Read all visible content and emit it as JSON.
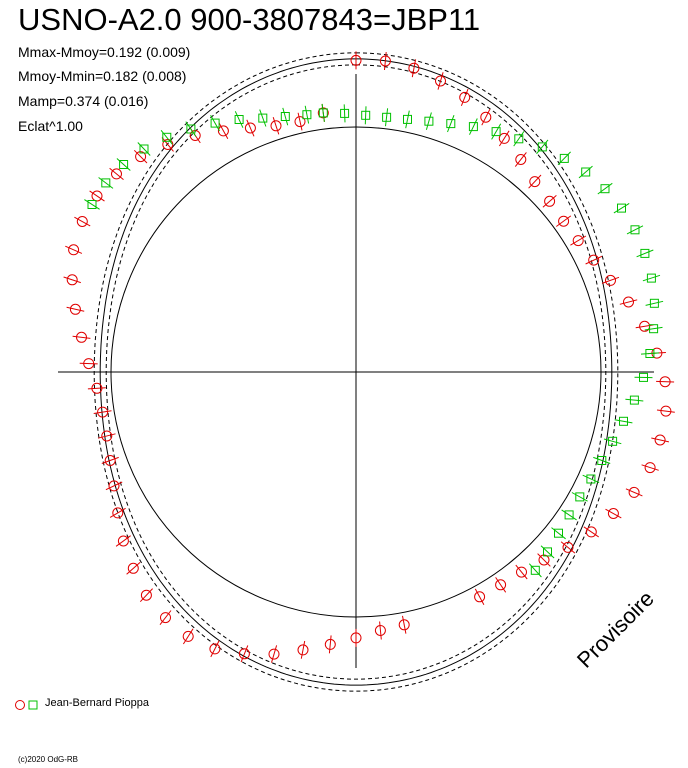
{
  "title": "USNO-A2.0 900-3807843=JBP11",
  "stats": [
    "Mmax-Mmoy=0.192 (0.009)",
    "Mmoy-Mmin=0.182 (0.008)",
    "Mamp=0.374 (0.016)",
    "Eclat^1.00"
  ],
  "legend": {
    "observer": "Jean-Bernard Pioppa"
  },
  "watermark": "Provisoire",
  "copyright": "(c)2020 OdG-RB",
  "colors": {
    "series_red": "#e00000",
    "series_green": "#00c000",
    "axes": "#000000",
    "curve": "#000000"
  },
  "chart_data": {
    "type": "scatter",
    "projection": "polar phase diagram",
    "title": "USNO-A2.0 900-3807843=JBP11",
    "grid": false,
    "legend_position": "bottom-left",
    "amplitude": 0.374,
    "max_minus_mean": 0.192,
    "mean_minus_min": 0.182,
    "series": [
      {
        "name": "Jean-Bernard Pioppa",
        "marker": "circle",
        "color": "#e00000",
        "phase": [
          0.0,
          0.015,
          0.03,
          0.045,
          0.06,
          0.075,
          0.09,
          0.105,
          0.12,
          0.135,
          0.15,
          0.165,
          0.18,
          0.195,
          0.21,
          0.225,
          0.24,
          0.255,
          0.27,
          0.285,
          0.3,
          0.315,
          0.33,
          0.345,
          0.36,
          0.375,
          0.39,
          0.405,
          0.42,
          0.47,
          0.485,
          0.5,
          0.515,
          0.53,
          0.545,
          0.56,
          0.575,
          0.59,
          0.605,
          0.62,
          0.635,
          0.65,
          0.665,
          0.68,
          0.695,
          0.71,
          0.725,
          0.74,
          0.755,
          0.77,
          0.785,
          0.8,
          0.815,
          0.83,
          0.845,
          0.86,
          0.875,
          0.89,
          0.905,
          0.92,
          0.935,
          0.95,
          0.965,
          0.98
        ],
        "delta_mag": [
          0.175,
          0.18,
          0.16,
          0.12,
          0.07,
          0.01,
          -0.05,
          -0.1,
          -0.15,
          -0.17,
          -0.18,
          -0.17,
          -0.14,
          -0.09,
          -0.02,
          0.05,
          0.11,
          0.16,
          0.18,
          0.175,
          0.16,
          0.12,
          0.06,
          0.0,
          -0.06,
          -0.12,
          -0.16,
          -0.175,
          -0.18,
          -0.175,
          -0.16,
          -0.12,
          -0.07,
          -0.01,
          0.06,
          0.12,
          0.17,
          0.185,
          0.17,
          0.14,
          0.08,
          0.02,
          -0.05,
          -0.11,
          -0.15,
          -0.175,
          -0.18,
          -0.16,
          -0.11,
          -0.05,
          0.02,
          0.09,
          0.15,
          0.18,
          0.185,
          0.17,
          0.13,
          0.07,
          0.01,
          -0.06,
          -0.12,
          -0.165,
          -0.18,
          -0.15
        ]
      },
      {
        "name": "Jean-Bernard Pioppa",
        "marker": "square",
        "color": "#00c000",
        "phase": [
          0.98,
          0.993,
          0.006,
          0.019,
          0.032,
          0.045,
          0.058,
          0.071,
          0.084,
          0.097,
          0.11,
          0.123,
          0.136,
          0.149,
          0.162,
          0.175,
          0.188,
          0.201,
          0.214,
          0.227,
          0.24,
          0.253,
          0.266,
          0.279,
          0.292,
          0.305,
          0.318,
          0.331,
          0.344,
          0.357,
          0.37,
          0.383,
          0.84,
          0.853,
          0.866,
          0.879,
          0.892,
          0.905,
          0.918,
          0.931,
          0.944,
          0.957,
          0.97
        ],
        "delta_mag": [
          -0.15,
          -0.165,
          -0.178,
          -0.18,
          -0.172,
          -0.15,
          -0.12,
          -0.08,
          -0.04,
          0.0,
          0.05,
          0.09,
          0.13,
          0.16,
          0.178,
          0.185,
          0.18,
          0.165,
          0.14,
          0.105,
          0.065,
          0.02,
          -0.03,
          -0.08,
          -0.12,
          -0.15,
          -0.17,
          -0.182,
          -0.18,
          -0.165,
          -0.14,
          -0.11,
          0.182,
          0.188,
          0.175,
          0.15,
          0.11,
          0.06,
          0.01,
          -0.04,
          -0.09,
          -0.125,
          -0.145
        ]
      }
    ]
  }
}
